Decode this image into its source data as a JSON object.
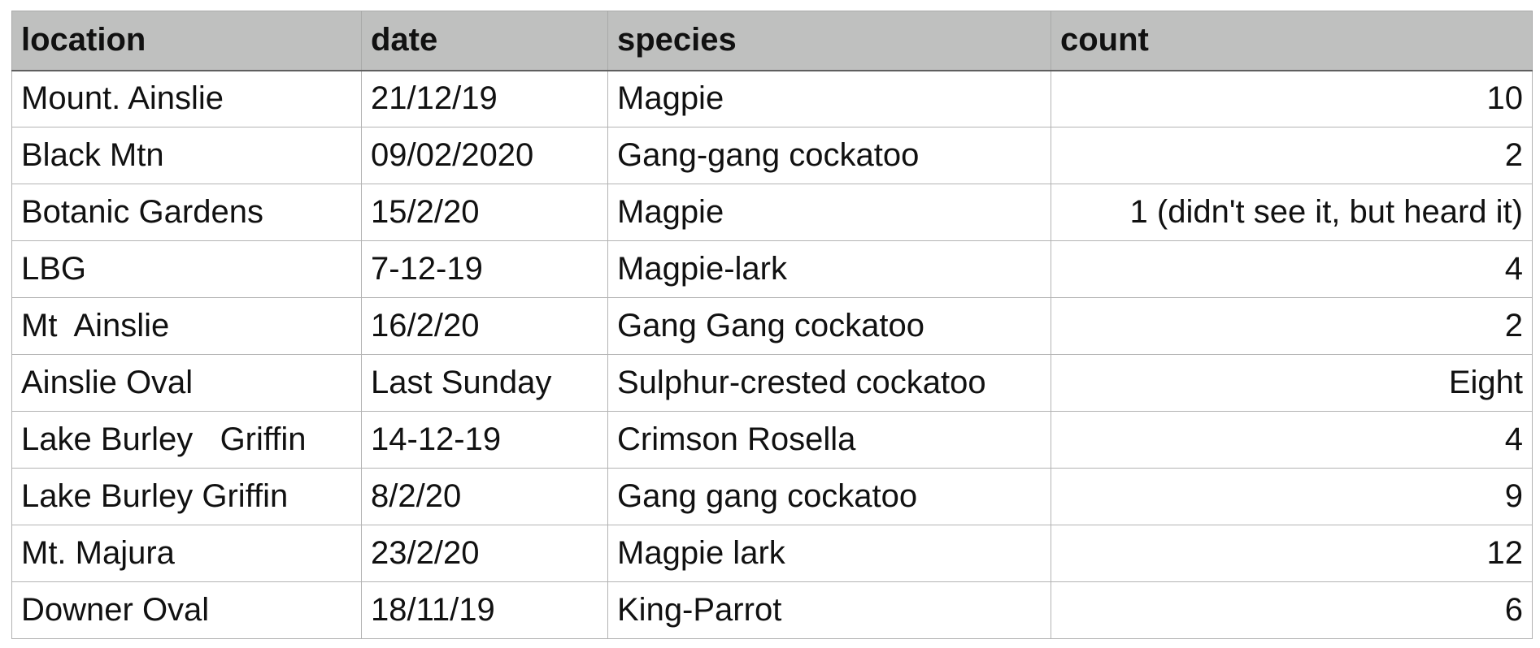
{
  "table": {
    "columns": [
      "location",
      "date",
      "species",
      "count"
    ],
    "rows": [
      [
        "Mount. Ainslie",
        "21/12/19",
        "Magpie",
        "10"
      ],
      [
        "Black Mtn",
        "09/02/2020",
        "Gang-gang cockatoo",
        "2"
      ],
      [
        "Botanic Gardens",
        "15/2/20",
        "Magpie",
        "1 (didn't see it, but heard it)"
      ],
      [
        "LBG",
        "7-12-19",
        "Magpie-lark",
        "4"
      ],
      [
        "Mt  Ainslie",
        "16/2/20",
        "Gang Gang cockatoo",
        "2"
      ],
      [
        "Ainslie Oval",
        "Last Sunday",
        "Sulphur-crested cockatoo",
        "Eight"
      ],
      [
        "Lake Burley   Griffin",
        "14-12-19",
        "Crimson Rosella",
        "4"
      ],
      [
        "Lake Burley Griffin",
        "8/2/20",
        "Gang gang cockatoo",
        "9"
      ],
      [
        "Mt. Majura",
        "23/2/20",
        "Magpie lark",
        "12"
      ],
      [
        "Downer Oval",
        "18/11/19",
        "King-Parrot",
        "6"
      ]
    ]
  },
  "colors": {
    "header_background": "#bfc0bf",
    "grid_line": "#b3b3b3",
    "text": "#111111"
  }
}
